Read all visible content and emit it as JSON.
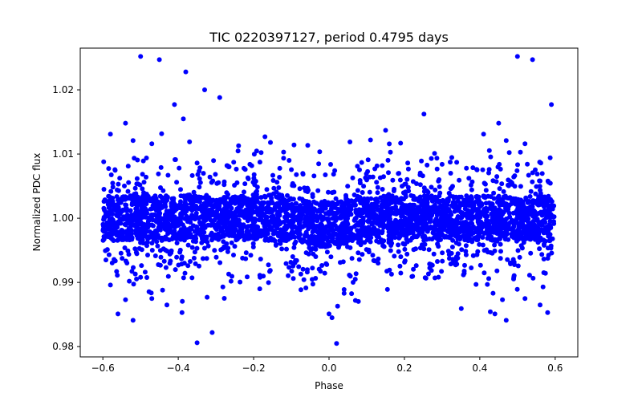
{
  "chart_data": {
    "type": "scatter",
    "title": "TIC 0220397127, period 0.4795 days",
    "xlabel": "Phase",
    "ylabel": "Normalized PDC flux",
    "xlim": [
      -0.66,
      0.66
    ],
    "ylim": [
      0.9784,
      1.0265
    ],
    "xticks": [
      -0.6,
      -0.4,
      -0.2,
      0.0,
      0.2,
      0.4,
      0.6
    ],
    "xtick_labels": [
      "−0.6",
      "−0.4",
      "−0.2",
      "0.0",
      "0.2",
      "0.4",
      "0.6"
    ],
    "yticks": [
      0.98,
      0.99,
      1.0,
      1.01,
      1.02
    ],
    "ytick_labels": [
      "0.98",
      "0.99",
      "1.00",
      "1.01",
      "1.02"
    ],
    "grid": false,
    "marker_color": "#0000ff",
    "core_band": {
      "x_range": [
        -0.6,
        0.6
      ],
      "center": 1.0,
      "half_width": 0.0035,
      "center_at_phase_0": 0.999,
      "dip_width_phase": 0.12
    },
    "outliers": [
      [
        -0.58,
        1.0131
      ],
      [
        -0.54,
        1.0148
      ],
      [
        -0.52,
        1.0121
      ],
      [
        -0.5,
        1.0252
      ],
      [
        -0.47,
        1.0116
      ],
      [
        -0.45,
        1.0247
      ],
      [
        -0.41,
        1.0177
      ],
      [
        -0.38,
        1.0228
      ],
      [
        -0.37,
        1.0119
      ],
      [
        -0.35,
        1.0086
      ],
      [
        -0.33,
        1.02
      ],
      [
        -0.29,
        1.0188
      ],
      [
        -0.24,
        1.0113
      ],
      [
        -0.21,
        1.0084
      ],
      [
        -0.17,
        1.0127
      ],
      [
        -0.58,
        0.9896
      ],
      [
        -0.56,
        0.9851
      ],
      [
        -0.54,
        0.9873
      ],
      [
        -0.52,
        0.9841
      ],
      [
        -0.5,
        0.9908
      ],
      [
        -0.47,
        0.9875
      ],
      [
        -0.43,
        0.9865
      ],
      [
        -0.39,
        0.9853
      ],
      [
        -0.35,
        0.9806
      ],
      [
        -0.31,
        0.9822
      ],
      [
        -0.26,
        0.9902
      ],
      [
        -0.53,
        0.9902
      ],
      [
        0.0,
        0.9851
      ],
      [
        0.02,
        0.9805
      ],
      [
        0.04,
        0.9889
      ],
      [
        0.04,
        0.9883
      ],
      [
        0.07,
        0.9872
      ],
      [
        0.11,
        1.0122
      ],
      [
        0.15,
        1.0137
      ],
      [
        0.19,
        1.0117
      ],
      [
        0.28,
        1.0101
      ],
      [
        0.41,
        1.0131
      ],
      [
        0.45,
        1.0148
      ],
      [
        0.47,
        1.0121
      ],
      [
        0.5,
        1.0252
      ],
      [
        0.52,
        1.0116
      ],
      [
        0.54,
        1.0247
      ],
      [
        0.59,
        1.0177
      ],
      [
        0.22,
        0.9909
      ],
      [
        0.39,
        0.9897
      ],
      [
        0.42,
        0.9897
      ],
      [
        0.44,
        0.9851
      ],
      [
        0.46,
        0.9873
      ],
      [
        0.47,
        0.9841
      ],
      [
        0.49,
        0.9908
      ],
      [
        0.52,
        0.9875
      ],
      [
        0.56,
        0.9865
      ],
      [
        0.58,
        0.9853
      ],
      [
        0.13,
        0.993
      ],
      [
        0.3,
        1.0084
      ]
    ]
  }
}
